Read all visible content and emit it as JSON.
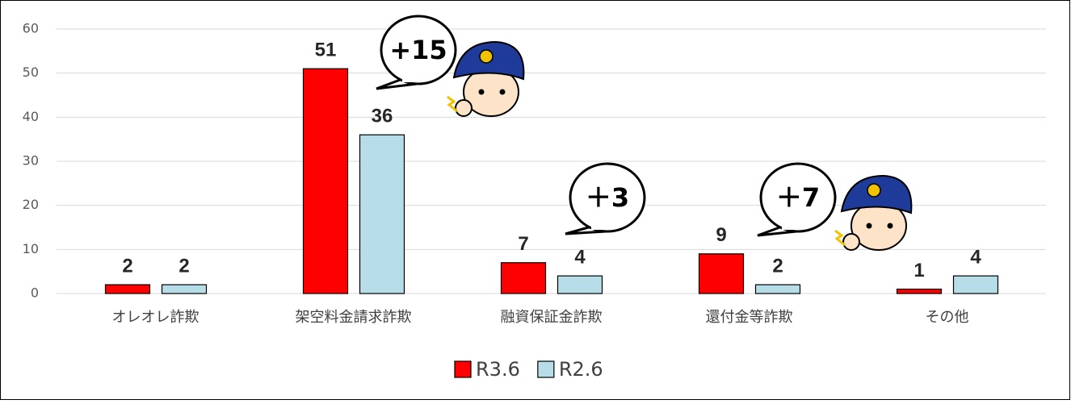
{
  "chart_data": {
    "type": "bar",
    "categories": [
      "オレオレ詐欺",
      "架空料金請求詐欺",
      "融資保証金詐欺",
      "還付金等詐欺",
      "その他"
    ],
    "series": [
      {
        "name": "R3.6",
        "color": "#ff0000",
        "values": [
          2,
          51,
          7,
          9,
          1
        ]
      },
      {
        "name": "R2.6",
        "color": "#b7dde8",
        "values": [
          2,
          36,
          4,
          2,
          4
        ]
      }
    ],
    "ylim": [
      0,
      60
    ],
    "yticks": [
      0,
      10,
      20,
      30,
      40,
      50,
      60
    ],
    "grid": true,
    "annotations": [
      "+15",
      "＋3",
      "＋7"
    ],
    "legend": "bottom"
  }
}
